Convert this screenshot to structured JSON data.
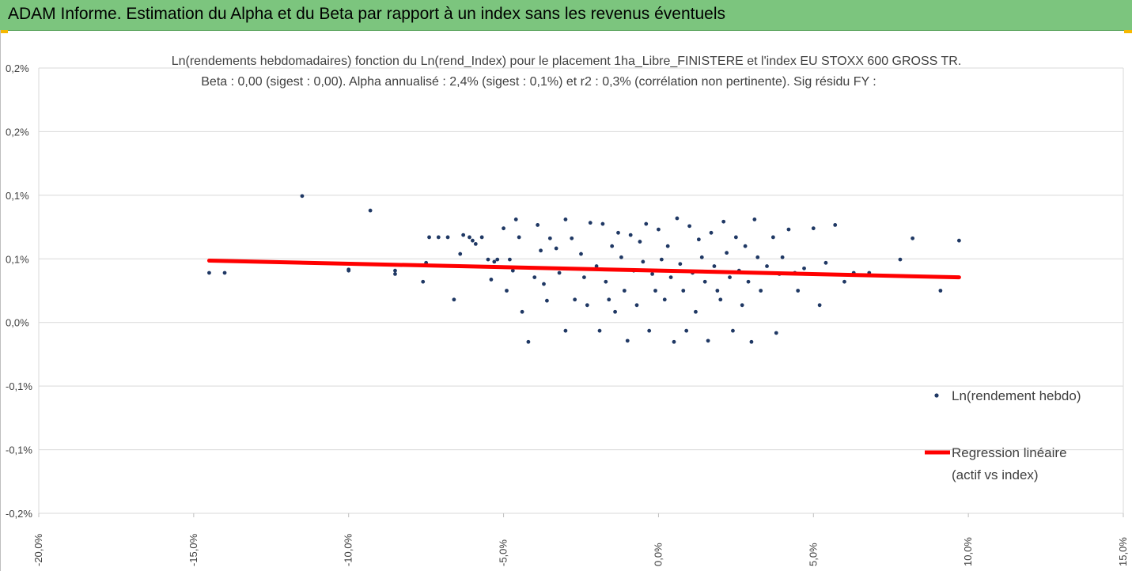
{
  "banner": {
    "title": "ADAM Informe. Estimation du Alpha et du Beta par rapport à un index sans les revenus éventuels"
  },
  "chart_data": {
    "type": "scatter",
    "title": "Ln(rendements hebdomadaires) fonction du Ln(rend_Index) pour le placement 1ha_Libre_FINISTERE et l'index EU STOXX 600 GROSS TR.",
    "subtitle": "Beta : 0,00 (sigest : 0,00). Alpha annualisé : 2,4% (sigest : 0,1%) et r2 : 0,3% (corrélation non pertinente). Sig résidu FY :",
    "xlabel": "",
    "ylabel": "",
    "xlim": [
      -20,
      15
    ],
    "ylim": [
      -0.2,
      0.2
    ],
    "x_ticks": [
      "-20,0%",
      "-15,0%",
      "-10,0%",
      "-5,0%",
      "0,0%",
      "5,0%",
      "10,0%",
      "15,0%"
    ],
    "y_ticks": [
      "0,2%",
      "0,2%",
      "0,1%",
      "0,1%",
      "0,0%",
      "-0,1%",
      "-0,1%",
      "-0,2%"
    ],
    "grid": true,
    "legend_position": "right",
    "series": [
      {
        "name": "Ln(rendement hebdo)",
        "type": "scatter",
        "color": "#1f3864",
        "points": [
          [
            -14.5,
            0.016
          ],
          [
            -14.0,
            0.016
          ],
          [
            -11.5,
            0.085
          ],
          [
            -10.0,
            0.019
          ],
          [
            -10.0,
            0.018
          ],
          [
            -9.3,
            0.072
          ],
          [
            -8.5,
            0.015
          ],
          [
            -8.5,
            0.018
          ],
          [
            -7.6,
            0.008
          ],
          [
            -7.5,
            0.025
          ],
          [
            -7.4,
            0.048
          ],
          [
            -7.1,
            0.048
          ],
          [
            -6.8,
            0.048
          ],
          [
            -6.6,
            -0.008
          ],
          [
            -6.4,
            0.033
          ],
          [
            -6.3,
            0.05
          ],
          [
            -6.1,
            0.048
          ],
          [
            -6.0,
            0.045
          ],
          [
            -5.9,
            0.042
          ],
          [
            -5.7,
            0.048
          ],
          [
            -5.5,
            0.028
          ],
          [
            -5.4,
            0.01
          ],
          [
            -5.3,
            0.026
          ],
          [
            -5.2,
            0.028
          ],
          [
            -5.0,
            0.056
          ],
          [
            -4.9,
            0.0
          ],
          [
            -4.8,
            0.028
          ],
          [
            -4.7,
            0.018
          ],
          [
            -4.6,
            0.064
          ],
          [
            -4.5,
            0.048
          ],
          [
            -4.4,
            -0.019
          ],
          [
            -4.2,
            -0.046
          ],
          [
            -4.0,
            0.012
          ],
          [
            -3.9,
            0.059
          ],
          [
            -3.8,
            0.036
          ],
          [
            -3.7,
            0.006
          ],
          [
            -3.6,
            -0.009
          ],
          [
            -3.5,
            0.047
          ],
          [
            -3.3,
            0.038
          ],
          [
            -3.2,
            0.016
          ],
          [
            -3.0,
            0.064
          ],
          [
            -3.0,
            -0.036
          ],
          [
            -2.8,
            0.047
          ],
          [
            -2.7,
            -0.008
          ],
          [
            -2.5,
            0.033
          ],
          [
            -2.4,
            0.012
          ],
          [
            -2.3,
            -0.013
          ],
          [
            -2.2,
            0.061
          ],
          [
            -2.0,
            0.022
          ],
          [
            -1.9,
            -0.036
          ],
          [
            -1.8,
            0.06
          ],
          [
            -1.7,
            0.008
          ],
          [
            -1.6,
            -0.008
          ],
          [
            -1.5,
            0.04
          ],
          [
            -1.4,
            -0.019
          ],
          [
            -1.3,
            0.052
          ],
          [
            -1.2,
            0.03
          ],
          [
            -1.1,
            0.0
          ],
          [
            -1.0,
            -0.045
          ],
          [
            -0.9,
            0.05
          ],
          [
            -0.8,
            0.018
          ],
          [
            -0.7,
            -0.013
          ],
          [
            -0.6,
            0.044
          ],
          [
            -0.5,
            0.026
          ],
          [
            -0.4,
            0.06
          ],
          [
            -0.3,
            -0.036
          ],
          [
            -0.2,
            0.015
          ],
          [
            -0.1,
            0.0
          ],
          [
            0.0,
            0.055
          ],
          [
            0.1,
            0.028
          ],
          [
            0.2,
            -0.008
          ],
          [
            0.3,
            0.04
          ],
          [
            0.4,
            0.012
          ],
          [
            0.5,
            -0.046
          ],
          [
            0.6,
            0.065
          ],
          [
            0.7,
            0.024
          ],
          [
            0.8,
            0.0
          ],
          [
            0.9,
            -0.036
          ],
          [
            1.0,
            0.058
          ],
          [
            1.1,
            0.016
          ],
          [
            1.2,
            -0.019
          ],
          [
            1.3,
            0.046
          ],
          [
            1.4,
            0.03
          ],
          [
            1.5,
            0.008
          ],
          [
            1.6,
            -0.045
          ],
          [
            1.7,
            0.052
          ],
          [
            1.8,
            0.022
          ],
          [
            1.9,
            0.0
          ],
          [
            2.0,
            -0.008
          ],
          [
            2.1,
            0.062
          ],
          [
            2.2,
            0.034
          ],
          [
            2.3,
            0.012
          ],
          [
            2.4,
            -0.036
          ],
          [
            2.5,
            0.048
          ],
          [
            2.6,
            0.018
          ],
          [
            2.7,
            -0.013
          ],
          [
            2.8,
            0.04
          ],
          [
            2.9,
            0.008
          ],
          [
            3.0,
            -0.046
          ],
          [
            3.1,
            0.064
          ],
          [
            3.2,
            0.03
          ],
          [
            3.3,
            0.0
          ],
          [
            3.5,
            0.022
          ],
          [
            3.7,
            0.048
          ],
          [
            3.8,
            -0.038
          ],
          [
            3.9,
            0.015
          ],
          [
            4.0,
            0.03
          ],
          [
            4.2,
            0.055
          ],
          [
            4.4,
            0.016
          ],
          [
            4.5,
            0.0
          ],
          [
            4.7,
            0.02
          ],
          [
            5.0,
            0.056
          ],
          [
            5.2,
            -0.013
          ],
          [
            5.4,
            0.025
          ],
          [
            5.7,
            0.059
          ],
          [
            6.0,
            0.008
          ],
          [
            6.3,
            0.016
          ],
          [
            6.8,
            0.016
          ],
          [
            7.8,
            0.028
          ],
          [
            8.2,
            0.047
          ],
          [
            9.7,
            0.045
          ],
          [
            9.1,
            0.0
          ]
        ]
      },
      {
        "name": "Regression linéaire (actif vs index)",
        "type": "line",
        "color": "#ff0000",
        "points": [
          [
            -14.5,
            0.027
          ],
          [
            9.7,
            0.012
          ]
        ]
      }
    ]
  },
  "legend": {
    "items": [
      {
        "label": "Ln(rendement hebdo)"
      },
      {
        "label_line1": "Regression linéaire",
        "label_line2": "(actif vs index)"
      }
    ]
  },
  "colors": {
    "banner": "#7cc57e",
    "point": "#1f3864",
    "regression": "#ff0000"
  }
}
